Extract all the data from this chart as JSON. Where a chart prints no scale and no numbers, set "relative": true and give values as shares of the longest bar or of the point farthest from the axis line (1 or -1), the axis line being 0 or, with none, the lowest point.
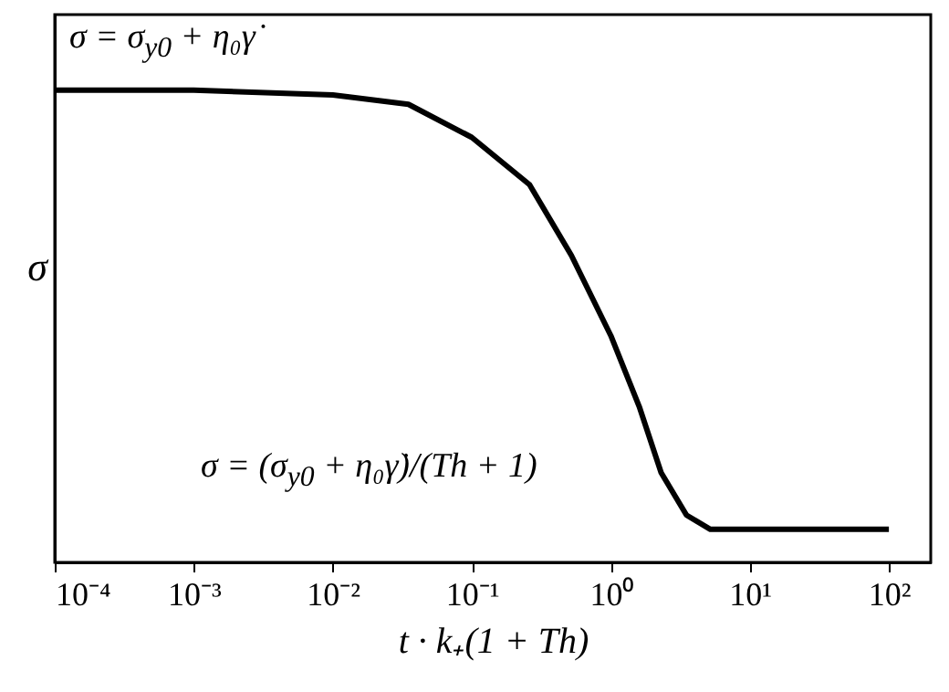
{
  "chart_data": {
    "type": "line",
    "xlabel": "t · k₊(1 + Th)",
    "ylabel": "σ",
    "relative": true,
    "log": "x",
    "xlim": [
      0.0001,
      200
    ],
    "xticks": [
      {
        "value": 0.0001,
        "label": "10⁻⁴"
      },
      {
        "value": 0.001,
        "label": "10⁻³"
      },
      {
        "value": 0.01,
        "label": "10⁻²"
      },
      {
        "value": 0.1,
        "label": "10⁻¹"
      },
      {
        "value": 1,
        "label": "10⁰"
      },
      {
        "value": 10,
        "label": "10¹"
      },
      {
        "value": 100,
        "label": "10²"
      }
    ],
    "x": [
      0.0001,
      0.001,
      0.01,
      0.035,
      0.1,
      0.26,
      0.52,
      1,
      1.6,
      2.3,
      3.5,
      5.2,
      10,
      100
    ],
    "series": [
      {
        "color": "#000000",
        "values": [
          1,
          1,
          0.99,
          0.97,
          0.9,
          0.8,
          0.65,
          0.48,
          0.33,
          0.19,
          0.1,
          0.07,
          0.07,
          0.07
        ]
      }
    ],
    "annotations": [
      "σ = σ$_{y0}$ + η₀γ̇",
      "σ = (σ$_{y0}$ + η₀γ̇)/(Th + 1)"
    ]
  }
}
